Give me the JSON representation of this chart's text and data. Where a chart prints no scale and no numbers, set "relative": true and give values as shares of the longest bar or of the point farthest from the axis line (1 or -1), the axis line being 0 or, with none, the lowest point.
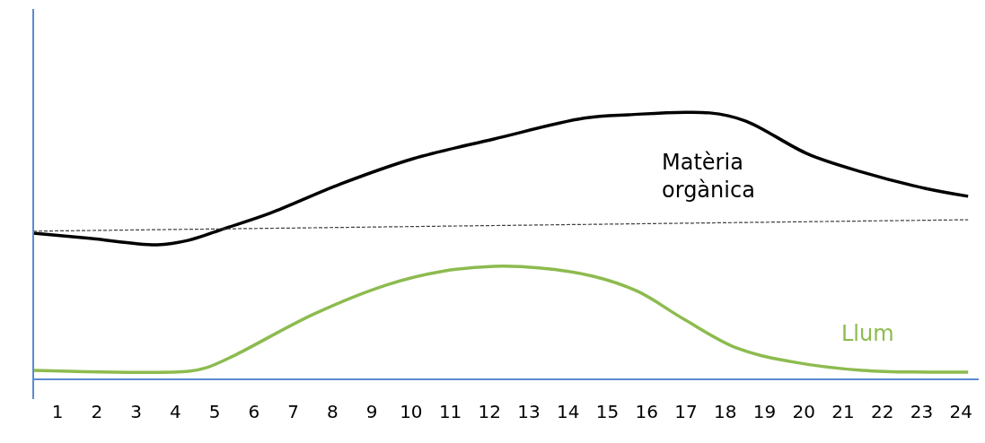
{
  "chart_data": {
    "type": "line",
    "relative": true,
    "xlim": [
      0.38,
      24.45
    ],
    "xticks": [
      1,
      2,
      3,
      4,
      5,
      6,
      7,
      8,
      9,
      10,
      11,
      12,
      13,
      14,
      15,
      16,
      17,
      18,
      19,
      20,
      21,
      22,
      23,
      24
    ],
    "grid": false,
    "legend": false,
    "marker": "none",
    "series": [
      {
        "name": "Matèria orgànica",
        "color": "#000000",
        "x": [
          0.38,
          1.82,
          3.54,
          4.34,
          5.25,
          6.4,
          8.22,
          10.05,
          12.11,
          14.4,
          15.54,
          17.6,
          18.51,
          20.11,
          21.48,
          23.08,
          24.18
        ],
        "values": [
          0.549,
          0.529,
          0.505,
          0.522,
          0.566,
          0.623,
          0.734,
          0.828,
          0.902,
          0.98,
          0.993,
          1.0,
          0.97,
          0.845,
          0.778,
          0.717,
          0.687
        ]
      },
      {
        "name": "Llum",
        "color": "#8dbb4f",
        "x": [
          0.38,
          4.34,
          4.8,
          5.48,
          7.54,
          9.37,
          10.74,
          12.11,
          13.25,
          14.63,
          15.77,
          16.91,
          18.28,
          19.66,
          21.48,
          24.18
        ],
        "values": [
          0.034,
          0.03,
          0.044,
          0.088,
          0.246,
          0.354,
          0.404,
          0.424,
          0.418,
          0.387,
          0.33,
          0.229,
          0.118,
          0.067,
          0.034,
          0.027
        ]
      },
      {
        "color": "#404040",
        "line_style": "dashed",
        "x": [
          0.38,
          24.18
        ],
        "values": [
          0.556,
          0.599
        ]
      }
    ]
  }
}
